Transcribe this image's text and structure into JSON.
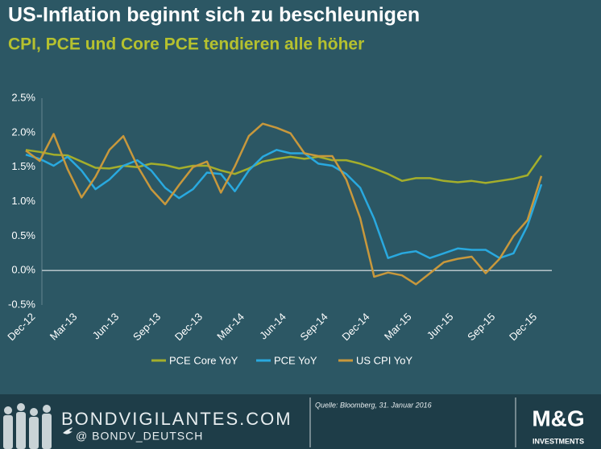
{
  "chart_data": {
    "type": "line",
    "title": "US-Inflation beginnt sich zu beschleunigen",
    "subtitle": "CPI, PCE und Core PCE tendieren alle höher",
    "categories": [
      "Dec-12",
      null,
      null,
      "Mar-13",
      null,
      null,
      "Jun-13",
      null,
      null,
      "Sep-13",
      null,
      null,
      "Dec-13",
      null,
      null,
      "Mar-14",
      null,
      null,
      "Jun-14",
      null,
      null,
      "Sep-14",
      null,
      null,
      "Dec-14",
      null,
      null,
      "Mar-15",
      null,
      null,
      "Jun-15",
      null,
      null,
      "Sep-15",
      null,
      null,
      "Dec-15",
      null
    ],
    "series": [
      {
        "name": "PCE Core YoY",
        "color": "#a4ae2b",
        "values": [
          1.75,
          1.72,
          1.68,
          1.67,
          1.58,
          1.49,
          1.48,
          1.52,
          1.5,
          1.55,
          1.53,
          1.48,
          1.52,
          1.52,
          1.45,
          1.4,
          1.48,
          1.58,
          1.62,
          1.65,
          1.62,
          1.65,
          1.6,
          1.6,
          1.55,
          1.48,
          1.4,
          1.3,
          1.34,
          1.34,
          1.3,
          1.28,
          1.3,
          1.27,
          1.3,
          1.33,
          1.38,
          1.67
        ]
      },
      {
        "name": "PCE YoY",
        "color": "#29a9df",
        "values": [
          1.68,
          1.62,
          1.52,
          1.65,
          1.45,
          1.18,
          1.32,
          1.52,
          1.6,
          1.45,
          1.2,
          1.05,
          1.18,
          1.42,
          1.4,
          1.15,
          1.45,
          1.65,
          1.75,
          1.7,
          1.7,
          1.55,
          1.52,
          1.4,
          1.2,
          0.75,
          0.18,
          0.25,
          0.28,
          0.18,
          0.25,
          0.32,
          0.3,
          0.3,
          0.18,
          0.25,
          0.65,
          1.25
        ]
      },
      {
        "name": "US CPI YoY",
        "color": "#c8983c",
        "values": [
          1.74,
          1.59,
          1.98,
          1.47,
          1.06,
          1.36,
          1.75,
          1.95,
          1.52,
          1.18,
          0.96,
          1.24,
          1.5,
          1.58,
          1.13,
          1.51,
          1.95,
          2.13,
          2.07,
          1.99,
          1.7,
          1.66,
          1.66,
          1.32,
          0.76,
          -0.09,
          -0.03,
          -0.07,
          -0.2,
          -0.04,
          0.12,
          0.17,
          0.2,
          -0.04,
          0.17,
          0.5,
          0.73,
          1.37
        ]
      }
    ],
    "ylim": [
      -0.5,
      2.5
    ],
    "yticks": [
      {
        "value": -0.5,
        "label": "-0.5%"
      },
      {
        "value": 0,
        "label": "0.0%"
      },
      {
        "value": 0.5,
        "label": "0.5%"
      },
      {
        "value": 1,
        "label": "1.0%"
      },
      {
        "value": 1.5,
        "label": "1.5%"
      },
      {
        "value": 2,
        "label": "2.0%"
      },
      {
        "value": 2.5,
        "label": "2.5%"
      }
    ],
    "zero_line": true
  },
  "footer": {
    "site": "BONDVIGILANTES.COM",
    "twitter": "@ BONDV_DEUTSCH",
    "source": "Quelle: Bloomberg, 31. Januar 2016",
    "logo": "M&G",
    "logo_sub": "INVESTMENTS"
  }
}
